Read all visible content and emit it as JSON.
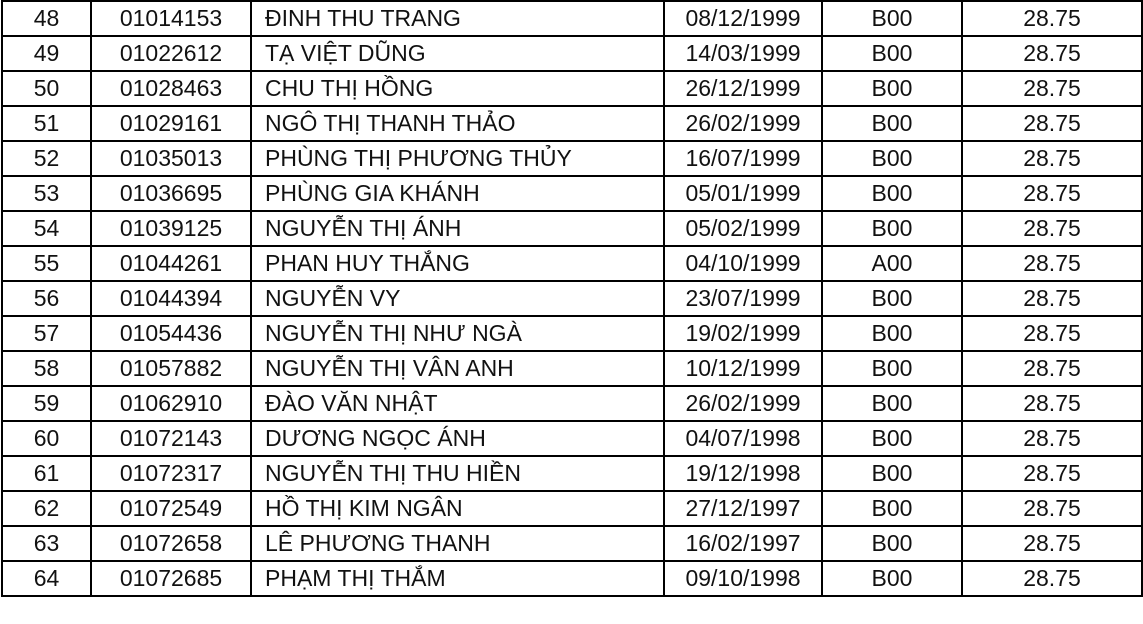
{
  "rows": [
    {
      "stt": "48",
      "sbd": "01014153",
      "name": "ĐINH THU TRANG",
      "dob": "08/12/1999",
      "block": "B00",
      "score": "28.75"
    },
    {
      "stt": "49",
      "sbd": "01022612",
      "name": "TẠ VIỆT DŨNG",
      "dob": "14/03/1999",
      "block": "B00",
      "score": "28.75"
    },
    {
      "stt": "50",
      "sbd": "01028463",
      "name": "CHU THỊ HỒNG",
      "dob": "26/12/1999",
      "block": "B00",
      "score": "28.75"
    },
    {
      "stt": "51",
      "sbd": "01029161",
      "name": "NGÔ THỊ THANH THẢO",
      "dob": "26/02/1999",
      "block": "B00",
      "score": "28.75"
    },
    {
      "stt": "52",
      "sbd": "01035013",
      "name": "PHÙNG THỊ PHƯƠNG THỦY",
      "dob": "16/07/1999",
      "block": "B00",
      "score": "28.75"
    },
    {
      "stt": "53",
      "sbd": "01036695",
      "name": "PHÙNG GIA KHÁNH",
      "dob": "05/01/1999",
      "block": "B00",
      "score": "28.75"
    },
    {
      "stt": "54",
      "sbd": "01039125",
      "name": "NGUYỄN THỊ ÁNH",
      "dob": "05/02/1999",
      "block": "B00",
      "score": "28.75"
    },
    {
      "stt": "55",
      "sbd": "01044261",
      "name": "PHAN HUY THẮNG",
      "dob": "04/10/1999",
      "block": "A00",
      "score": "28.75"
    },
    {
      "stt": "56",
      "sbd": "01044394",
      "name": "NGUYỄN VY",
      "dob": "23/07/1999",
      "block": "B00",
      "score": "28.75"
    },
    {
      "stt": "57",
      "sbd": "01054436",
      "name": "NGUYỄN THỊ NHƯ NGÀ",
      "dob": "19/02/1999",
      "block": "B00",
      "score": "28.75"
    },
    {
      "stt": "58",
      "sbd": "01057882",
      "name": "NGUYỄN THỊ VÂN ANH",
      "dob": "10/12/1999",
      "block": "B00",
      "score": "28.75"
    },
    {
      "stt": "59",
      "sbd": "01062910",
      "name": "ĐÀO VĂN NHẬT",
      "dob": "26/02/1999",
      "block": "B00",
      "score": "28.75"
    },
    {
      "stt": "60",
      "sbd": "01072143",
      "name": "DƯƠNG NGỌC ÁNH",
      "dob": "04/07/1998",
      "block": "B00",
      "score": "28.75"
    },
    {
      "stt": "61",
      "sbd": "01072317",
      "name": "NGUYỄN THỊ THU HIỀN",
      "dob": "19/12/1998",
      "block": "B00",
      "score": "28.75"
    },
    {
      "stt": "62",
      "sbd": "01072549",
      "name": "HỒ THỊ KIM NGÂN",
      "dob": "27/12/1997",
      "block": "B00",
      "score": "28.75"
    },
    {
      "stt": "63",
      "sbd": "01072658",
      "name": "LÊ PHƯƠNG THANH",
      "dob": "16/02/1997",
      "block": "B00",
      "score": "28.75"
    },
    {
      "stt": "64",
      "sbd": "01072685",
      "name": "PHẠM THỊ THẮM",
      "dob": "09/10/1998",
      "block": "B00",
      "score": "28.75"
    }
  ]
}
